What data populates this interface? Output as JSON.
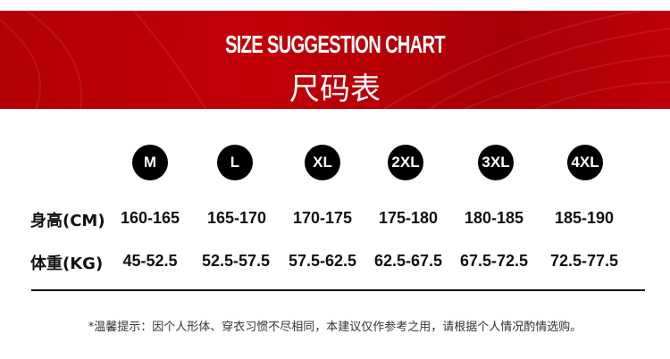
{
  "header": {
    "title_en": "SIZE SUGGESTION CHART",
    "title_cn": "尺码表",
    "color": "#b80006"
  },
  "sizes": [
    "M",
    "L",
    "XL",
    "2XL",
    "3XL",
    "4XL"
  ],
  "rows": [
    {
      "label": "身高(CM)",
      "values": [
        "160-165",
        "165-170",
        "170-175",
        "175-180",
        "180-185",
        "185-190"
      ]
    },
    {
      "label": "体重(KG)",
      "values": [
        "45-52.5",
        "52.5-57.5",
        "57.5-62.5",
        "62.5-67.5",
        "67.5-72.5",
        "72.5-77.5"
      ]
    }
  ],
  "note": "*温馨提示：因个人形体、穿衣习惯不尽相同，本建议仅作参考之用，请根据个人情况酌情选购。"
}
